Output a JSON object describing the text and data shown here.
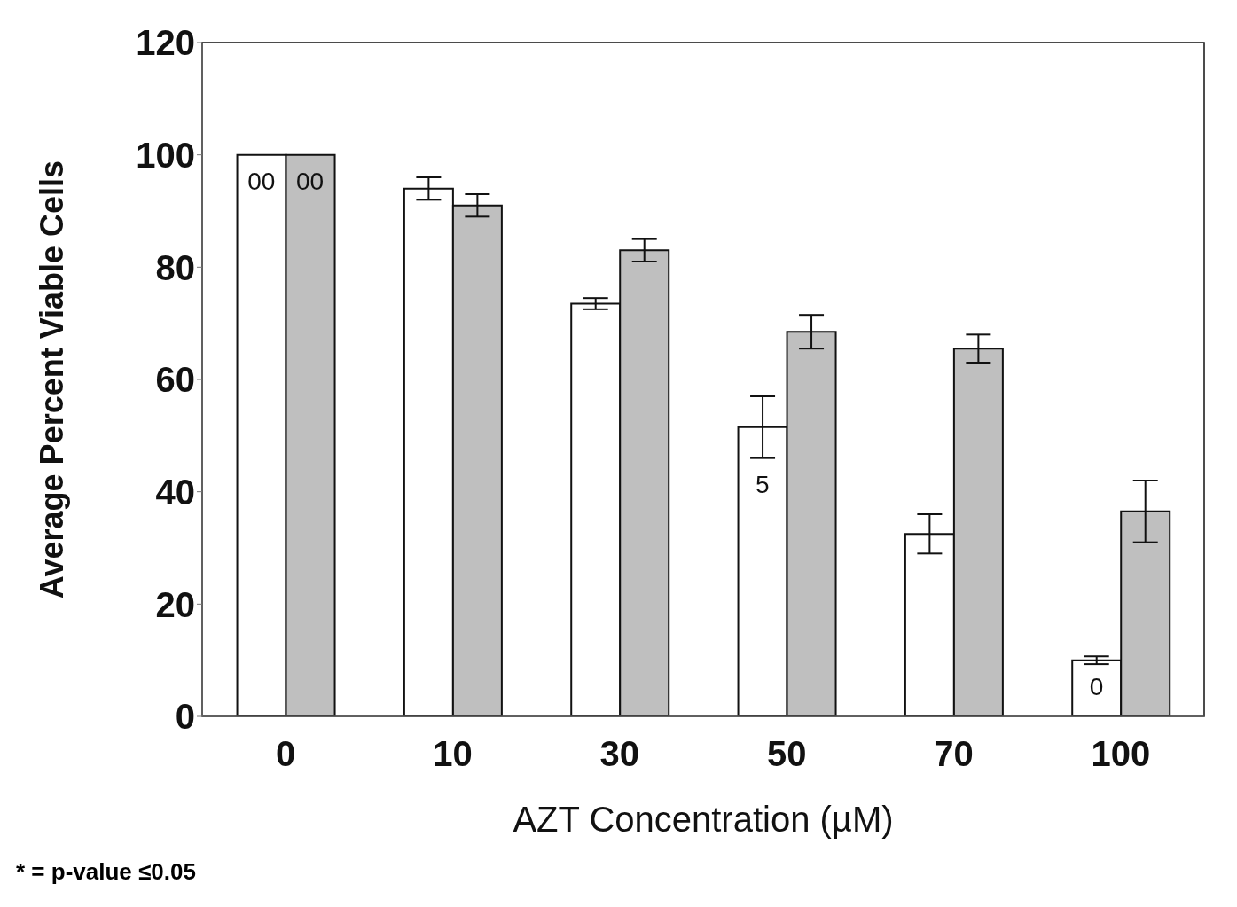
{
  "chart_data": {
    "type": "bar",
    "xlabel": "AZT Concentration (µM)",
    "ylabel": "Average Percent Viable Cells",
    "categories": [
      "0",
      "10",
      "30",
      "50",
      "70",
      "100"
    ],
    "series": [
      {
        "color": "#ffffff",
        "values": [
          100,
          94,
          73.5,
          51.5,
          32.5,
          10
        ],
        "errors": [
          null,
          2,
          1,
          5.5,
          3.5,
          0.7
        ]
      },
      {
        "color": "#bfbfbf",
        "values": [
          100,
          91,
          83,
          68.5,
          65.5,
          36.5
        ],
        "errors": [
          null,
          2,
          2,
          3,
          2.5,
          5.5
        ]
      }
    ],
    "ylim": [
      0,
      120
    ],
    "yticks": [
      0,
      20,
      40,
      60,
      80,
      100,
      120
    ],
    "grid": false,
    "legend": false,
    "annotations": [
      {
        "text": "00",
        "x": "0",
        "y": 95
      },
      {
        "text": "00",
        "x": "0",
        "y": 95
      },
      {
        "text": "5",
        "x": "50",
        "y": 41
      },
      {
        "text": "0",
        "x": "100",
        "y": 5
      },
      "* = p-value ≤0.05"
    ]
  }
}
